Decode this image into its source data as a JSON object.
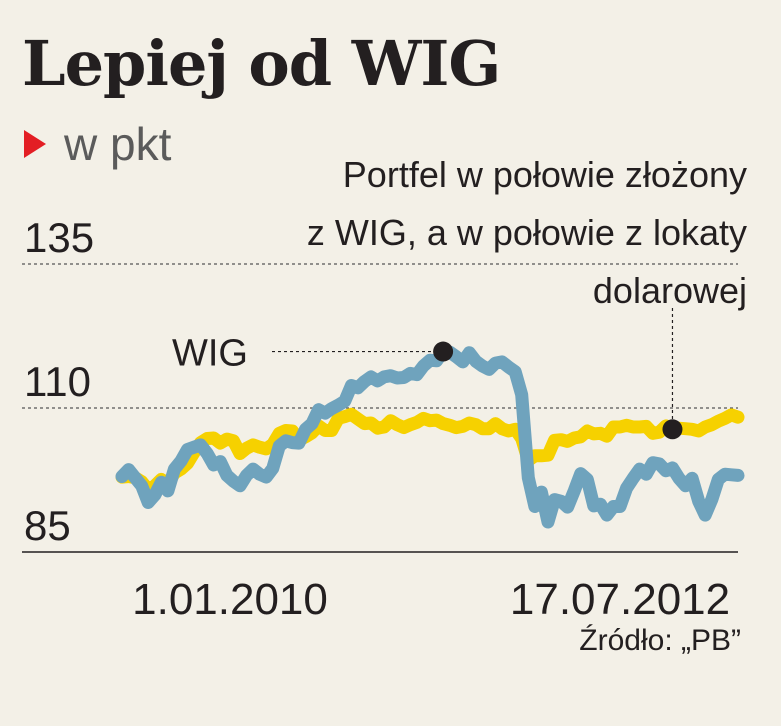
{
  "chart_data": {
    "type": "line",
    "title": "Lepiej od WIG",
    "unit": "w pkt",
    "annotation_lines": [
      "Portfel w połowie złożony",
      "z WIG, a w połowie z lokaty",
      "dolarowej"
    ],
    "ylim": [
      85,
      135
    ],
    "yticks": [
      "135",
      "110",
      "85"
    ],
    "xtick_labels": [
      "1.01.2010",
      "17.07.2012"
    ],
    "grid": "dashed horizontal at 110 and 135",
    "source": "Źródło: „PB”",
    "colors": {
      "wig": "#6fa3bd",
      "portfolio": "#f6d100",
      "marker": "#231f20",
      "accent": "#e31e24"
    },
    "series": [
      {
        "name": "WIG",
        "values": [
          98.1,
          99.3,
          97.9,
          96.5,
          93.6,
          94.9,
          97.1,
          95.6,
          99.4,
          100.8,
          102.8,
          103.2,
          103.6,
          102.1,
          100.1,
          100.7,
          98.3,
          97.3,
          96.5,
          98.3,
          99.4,
          98.5,
          98.0,
          99.5,
          103.4,
          104.3,
          104.0,
          103.9,
          106.3,
          107.3,
          109.7,
          109.1,
          109.9,
          110.5,
          111.2,
          113.9,
          113.5,
          114.6,
          115.4,
          114.7,
          115.4,
          115.6,
          115.2,
          115.3,
          116.0,
          115.8,
          117.3,
          118.3,
          118.2,
          119.8,
          119.7,
          118.9,
          118.0,
          119.6,
          118.1,
          117.3,
          116.7,
          117.8,
          118.0,
          117.1,
          116.3,
          112.3,
          97.9,
          92.9,
          95.4,
          90.2,
          94.1,
          93.8,
          92.8,
          95.6,
          98.6,
          97.6,
          93.0,
          93.3,
          91.4,
          92.9,
          92.9,
          96.1,
          97.8,
          99.4,
          98.5,
          100.5,
          100.3,
          99.1,
          99.6,
          97.8,
          96.5,
          97.8,
          93.8,
          91.4,
          94.1,
          97.6,
          98.5,
          98.4,
          98.3
        ]
      },
      {
        "name": "Portfel w połowie złożony z WIG, a w połowie z lokaty dolarowej",
        "values": [
          98.0,
          98.1,
          97.9,
          97.2,
          95.8,
          96.5,
          97.6,
          96.8,
          98.7,
          99.4,
          100.4,
          102.3,
          104.0,
          104.7,
          104.8,
          103.9,
          104.6,
          104.3,
          102.1,
          103.0,
          103.6,
          103.2,
          102.9,
          103.7,
          105.6,
          106.1,
          106.0,
          104.4,
          105.0,
          105.7,
          106.9,
          106.1,
          106.1,
          108.2,
          108.5,
          108.9,
          108.1,
          107.3,
          107.4,
          106.5,
          106.7,
          107.8,
          107.1,
          106.6,
          107.1,
          107.5,
          108.2,
          107.8,
          107.9,
          107.3,
          107.0,
          106.6,
          106.8,
          107.4,
          107.1,
          106.4,
          106.4,
          107.3,
          106.4,
          106.0,
          106.3,
          104.7,
          100.9,
          101.7,
          101.7,
          101.8,
          104.4,
          104.5,
          104.2,
          104.8,
          105.0,
          106.0,
          105.5,
          105.6,
          105.1,
          106.7,
          106.7,
          107.0,
          106.7,
          106.7,
          106.8,
          105.6,
          105.8,
          106.9,
          106.3,
          106.5,
          106.4,
          106.3,
          106.0,
          106.7,
          107.1,
          107.7,
          108.2,
          108.8,
          108.4
        ]
      }
    ],
    "callouts": [
      {
        "label": "WIG",
        "series": "WIG",
        "index": 49
      },
      {
        "label": "",
        "series": "Portfel w połowie złożony z WIG, a w połowie z lokaty dolarowej",
        "index": 84
      }
    ]
  }
}
